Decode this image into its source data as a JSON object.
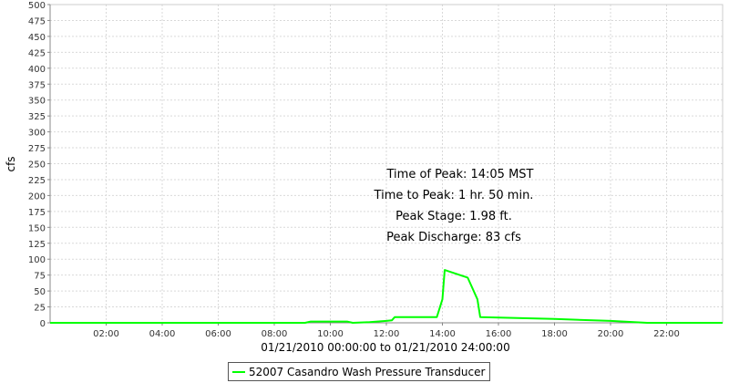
{
  "chart_data": {
    "type": "line",
    "ylabel": "cfs",
    "xlabel": "01/21/2010 00:00:00 to 01/21/2010 24:00:00",
    "ylim": [
      0,
      500
    ],
    "xlim": [
      0,
      24
    ],
    "yticks": [
      "0",
      "25",
      "50",
      "75",
      "100",
      "125",
      "150",
      "175",
      "200",
      "225",
      "250",
      "275",
      "300",
      "325",
      "350",
      "375",
      "400",
      "425",
      "450",
      "475",
      "500"
    ],
    "xticks": [
      {
        "value": 2,
        "label": "02:00"
      },
      {
        "value": 4,
        "label": "04:00"
      },
      {
        "value": 6,
        "label": "06:00"
      },
      {
        "value": 8,
        "label": "08:00"
      },
      {
        "value": 10,
        "label": "10:00"
      },
      {
        "value": 12,
        "label": "12:00"
      },
      {
        "value": 14,
        "label": "14:00"
      },
      {
        "value": 16,
        "label": "16:00"
      },
      {
        "value": 18,
        "label": "18:00"
      },
      {
        "value": 20,
        "label": "20:00"
      },
      {
        "value": 22,
        "label": "22:00"
      }
    ],
    "grid": true,
    "legend_position": "bottom",
    "series": [
      {
        "name": "52007 Casandro Wash Pressure Transducer",
        "color": "#00ff00",
        "points": [
          [
            0,
            0
          ],
          [
            9.1,
            0
          ],
          [
            9.3,
            2
          ],
          [
            10.6,
            2
          ],
          [
            10.8,
            0
          ],
          [
            11.4,
            1
          ],
          [
            12.0,
            3
          ],
          [
            12.2,
            4
          ],
          [
            12.3,
            9
          ],
          [
            13.8,
            9
          ],
          [
            14.0,
            37
          ],
          [
            14.08,
            83
          ],
          [
            14.9,
            71
          ],
          [
            15.25,
            37
          ],
          [
            15.35,
            9
          ],
          [
            18.0,
            6
          ],
          [
            20.0,
            3
          ],
          [
            21.3,
            0
          ],
          [
            24,
            0
          ]
        ]
      }
    ],
    "annotations": [
      "Time of Peak: 14:05 MST",
      "Time to Peak: 1 hr. 50 min.",
      "Peak Stage: 1.98 ft.",
      "Peak Discharge: 83 cfs"
    ]
  }
}
